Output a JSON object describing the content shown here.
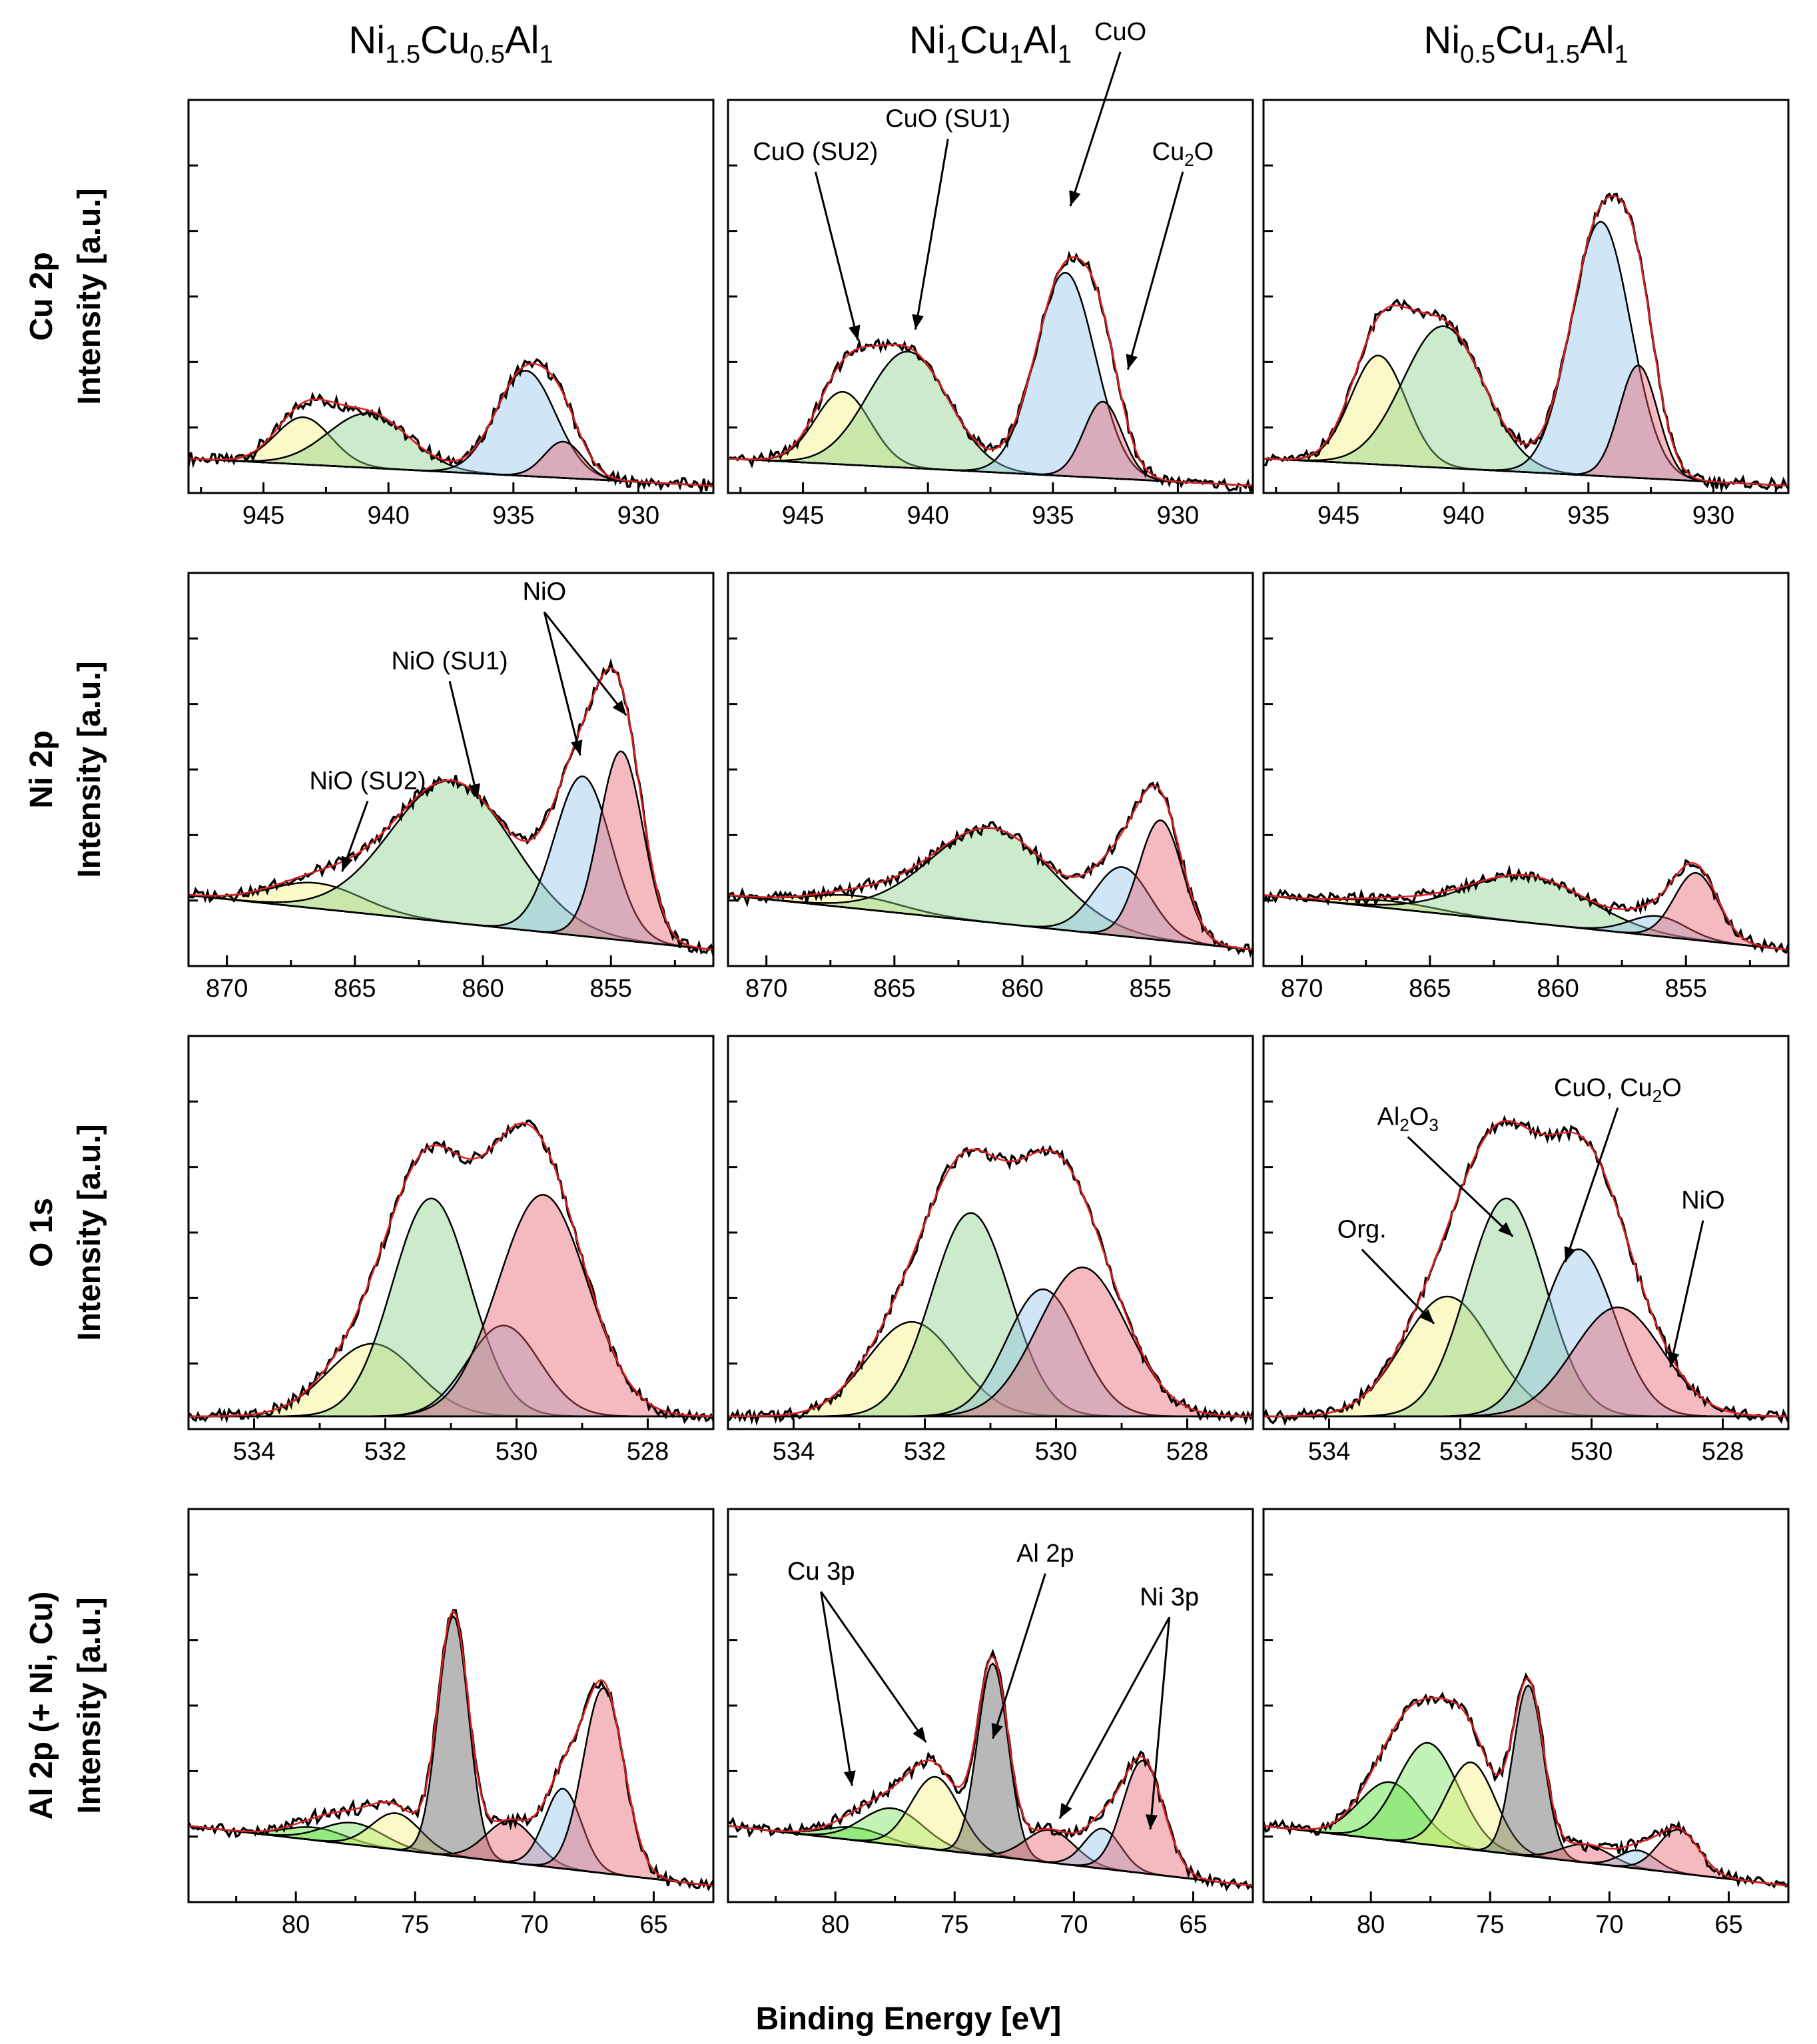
{
  "chart_data": {
    "type": "line",
    "title": "",
    "xlabel": "Binding Energy [eV]",
    "x_axis_reversed": true,
    "columns": [
      {
        "name": "Ni1.5Cu0.5Al1",
        "base": "Ni",
        "sub1": "1.5",
        "el2": "Cu",
        "sub2": "0.5",
        "el3": "Al",
        "sub3": "1"
      },
      {
        "name": "Ni1Cu1Al1",
        "base": "Ni",
        "sub1": "1",
        "el2": "Cu",
        "sub2": "1",
        "el3": "Al",
        "sub3": "1"
      },
      {
        "name": "Ni0.5Cu1.5Al1",
        "base": "Ni",
        "sub1": "0.5",
        "el2": "Cu",
        "sub2": "1.5",
        "el3": "Al",
        "sub3": "1"
      }
    ],
    "rows": [
      {
        "key": "cu2p",
        "label_top": "Cu 2p",
        "label_bottom": "Intensity [a.u.]",
        "xlim": [
          948,
          927
        ],
        "ticks": [
          945,
          940,
          935,
          930
        ],
        "ylim": [
          0,
          10
        ],
        "background": {
          "hi": 0.95,
          "lo": 0.2
        },
        "components": [
          {
            "name": "CuO (SU2)",
            "center": 943.4,
            "fwhm": 2.6,
            "color": "#f2f07a"
          },
          {
            "name": "CuO (SU1)",
            "center": 940.8,
            "fwhm": 3.8,
            "color": "#86cc86"
          },
          {
            "name": "CuO",
            "center": 934.5,
            "fwhm": 2.8,
            "color": "#8fc0ea"
          },
          {
            "name": "Cu2O",
            "center": 933.0,
            "fwhm": 1.8,
            "color": "#e85a6a"
          }
        ],
        "heights": [
          [
            1.3,
            1.5,
            2.9,
            1.0
          ],
          [
            2.0,
            3.2,
            5.6,
            2.1
          ],
          [
            3.0,
            3.9,
            7.0,
            3.1
          ]
        ]
      },
      {
        "key": "ni2p",
        "label_top": "Ni 2p",
        "label_bottom": "Intensity [a.u.]",
        "xlim": [
          871.5,
          851
        ],
        "ticks": [
          870,
          865,
          860,
          855
        ],
        "ylim": [
          0,
          10
        ],
        "background": {
          "hi": 1.95,
          "lo": 0.45
        },
        "components": [
          {
            "name": "NiO (SU2)",
            "center": 866.5,
            "fwhm": 4.2,
            "color": "#f2f07a"
          },
          {
            "name": "NiO (SU1)",
            "center": 861.2,
            "fwhm": 5.6,
            "color": "#86cc86"
          },
          {
            "name": "NiO",
            "center": 856.1,
            "fwhm": 2.6,
            "color": "#8fc0ea"
          },
          {
            "name": "NiO",
            "center": 854.6,
            "fwhm": 2.0,
            "color": "#e85a6a"
          }
        ],
        "heights": [
          [
            0.7,
            3.9,
            4.4,
            5.2
          ],
          [
            0.35,
            2.6,
            1.9,
            3.3
          ],
          [
            0.2,
            1.3,
            0.55,
            1.85
          ]
        ]
      },
      {
        "key": "o1s",
        "label_top": "O 1s",
        "label_bottom": "Intensity [a.u.]",
        "xlim": [
          535,
          527
        ],
        "ticks": [
          534,
          532,
          530,
          528
        ],
        "ylim": [
          0,
          10
        ],
        "background": {
          "hi": 0.35,
          "lo": 0.35
        },
        "components": [
          {
            "name": "Org.",
            "center": 532.2,
            "fwhm": 1.6,
            "color": "#f2f07a"
          },
          {
            "name": "Al2O3",
            "center": 531.3,
            "fwhm": 1.4,
            "color": "#86cc86"
          },
          {
            "name": "CuO, Cu2O",
            "center": 530.2,
            "fwhm": 1.3,
            "color": "#8fc0ea"
          },
          {
            "name": "NiO",
            "center": 529.6,
            "fwhm": 1.6,
            "color": "#e85a6a"
          }
        ],
        "heights": [
          [
            2.0,
            6.0,
            2.5,
            6.1
          ],
          [
            2.6,
            5.6,
            3.5,
            4.1
          ],
          [
            3.3,
            6.0,
            4.6,
            3.0
          ]
        ]
      },
      {
        "key": "al2p",
        "label_top": "Al 2p (+ Ni, Cu)",
        "label_bottom": "Intensity [a.u.]",
        "xlim": [
          84.5,
          62.5
        ],
        "ticks": [
          80,
          75,
          70,
          65
        ],
        "ylim": [
          0,
          10
        ],
        "background": {
          "hi": 2.1,
          "lo": 0.45
        },
        "components": [
          {
            "name": "Cu 3p",
            "center": 79.2,
            "fwhm": 3.0,
            "color": "#40dd20"
          },
          {
            "name": "Cu 3p",
            "center": 77.6,
            "fwhm": 3.0,
            "color": "#70e050"
          },
          {
            "name": "Cu 3p",
            "center": 75.8,
            "fwhm": 2.4,
            "color": "#f2f07a"
          },
          {
            "name": "Al 2p",
            "center": 73.4,
            "fwhm": 1.5,
            "color": "#555555"
          },
          {
            "name": "Ni 3p",
            "center": 71.0,
            "fwhm": 2.4,
            "color": "#e85a6a"
          },
          {
            "name": "Ni 3p",
            "center": 68.8,
            "fwhm": 1.8,
            "color": "#8fc0ea"
          },
          {
            "name": "Ni 3p",
            "center": 67.1,
            "fwhm": 2.0,
            "color": "#e85a6a"
          }
        ],
        "heights": [
          [
            0.35,
            0.6,
            1.0,
            6.6,
            1.15,
            2.2,
            5.1
          ],
          [
            0.35,
            1.0,
            2.0,
            5.3,
            0.9,
            1.1,
            3.1
          ],
          [
            1.6,
            2.8,
            2.4,
            4.7,
            0.5,
            0.5,
            1.2
          ]
        ]
      }
    ],
    "annotations": [
      {
        "panel": [
          0,
          1
        ],
        "text": "CuO (SU2)",
        "label_x": 944.5,
        "label_y": 9.1,
        "target_x": 942.8,
        "target_y": 4.2
      },
      {
        "panel": [
          0,
          1
        ],
        "text": "CuO (SU1)",
        "label_x": 939.2,
        "label_y": 10.0,
        "target_x": 940.5,
        "target_y": 4.5
      },
      {
        "panel": [
          0,
          1
        ],
        "text": "CuO",
        "label_x": 932.3,
        "label_y": 12.4,
        "target_x": 934.3,
        "target_y": 7.9
      },
      {
        "panel": [
          0,
          1
        ],
        "text": "Cu2O",
        "label_x": 929.8,
        "label_y": 9.1,
        "target_x": 932.0,
        "target_y": 3.4
      },
      {
        "panel": [
          1,
          0
        ],
        "text": "NiO (SU2)",
        "label_x": 864.5,
        "label_y": 4.8,
        "target_x": 865.5,
        "target_y": 2.6
      },
      {
        "panel": [
          1,
          0
        ],
        "text": "NiO (SU1)",
        "label_x": 861.3,
        "label_y": 8.1,
        "target_x": 860.2,
        "target_y": 4.6
      },
      {
        "panel": [
          1,
          0
        ],
        "text": "NiO",
        "label_x": 857.6,
        "label_y": 10.0,
        "target_x": 856.2,
        "target_y": 5.8
      },
      {
        "panel": [
          1,
          0
        ],
        "text": "NiO",
        "label_x": 857.6,
        "label_y": 10.0,
        "target_x": 854.4,
        "target_y": 6.9
      },
      {
        "panel": [
          2,
          2
        ],
        "text": "Org.",
        "label_x": 533.5,
        "label_y": 5.2,
        "target_x": 532.4,
        "target_y": 2.9
      },
      {
        "panel": [
          2,
          2
        ],
        "text": "Al2O3",
        "label_x": 532.8,
        "label_y": 8.3,
        "target_x": 531.2,
        "target_y": 5.3
      },
      {
        "panel": [
          2,
          2
        ],
        "text": "CuO, Cu2O",
        "label_x": 529.6,
        "label_y": 9.1,
        "target_x": 530.4,
        "target_y": 4.6
      },
      {
        "panel": [
          2,
          2
        ],
        "text": "NiO",
        "label_x": 528.3,
        "label_y": 6.0,
        "target_x": 528.8,
        "target_y": 1.7
      },
      {
        "panel": [
          3,
          1
        ],
        "text": "Cu 3p",
        "label_x": 80.6,
        "label_y": 8.8,
        "target_x": 79.3,
        "target_y": 3.2
      },
      {
        "panel": [
          3,
          1
        ],
        "text": "Cu 3p",
        "label_x": 80.6,
        "label_y": 8.8,
        "target_x": 76.2,
        "target_y": 4.4
      },
      {
        "panel": [
          3,
          1
        ],
        "text": "Al 2p",
        "label_x": 71.2,
        "label_y": 9.3,
        "target_x": 73.4,
        "target_y": 4.5
      },
      {
        "panel": [
          3,
          1
        ],
        "text": "Ni 3p",
        "label_x": 66.0,
        "label_y": 8.1,
        "target_x": 70.6,
        "target_y": 2.3
      },
      {
        "panel": [
          3,
          1
        ],
        "text": "Ni 3p",
        "label_x": 66.0,
        "label_y": 8.1,
        "target_x": 66.8,
        "target_y": 2.0
      }
    ]
  }
}
